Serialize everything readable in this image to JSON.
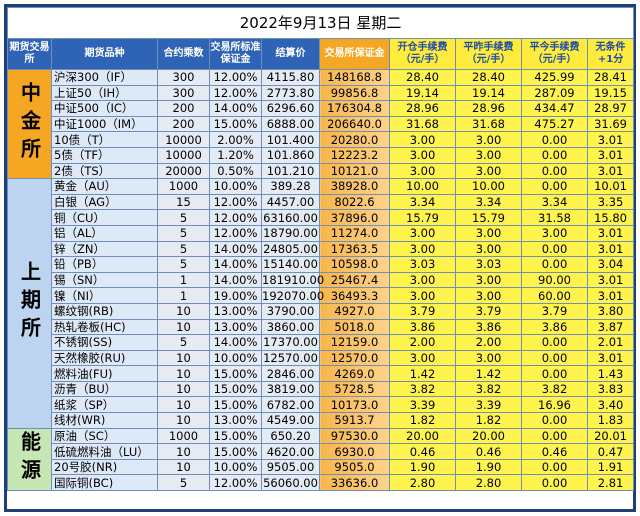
{
  "table": {
    "title": "2022年9月13日  星期二",
    "columns": [
      "期货交易所",
      "期货品种",
      "合约乘数",
      "交易所标准保证金",
      "结算价",
      "交易所保证金",
      "开仓手续费（元/手）",
      "平昨手续费（元/手）",
      "平今手续费（元/手）",
      "无条件+1分"
    ],
    "groups": [
      {
        "exchange": "中金所",
        "rows": [
          [
            "沪深300（IF）",
            "300",
            "12.00%",
            "4115.80",
            "148168.8",
            "28.40",
            "28.40",
            "425.99",
            "28.41"
          ],
          [
            "上证50（IH）",
            "300",
            "12.00%",
            "2773.80",
            "99856.8",
            "19.14",
            "19.14",
            "287.09",
            "19.15"
          ],
          [
            "中证500（IC）",
            "200",
            "14.00%",
            "6296.60",
            "176304.8",
            "28.96",
            "28.96",
            "434.47",
            "28.97"
          ],
          [
            "中证1000（IM）",
            "200",
            "15.00%",
            "6888.00",
            "206640.0",
            "31.68",
            "31.68",
            "475.27",
            "31.69"
          ],
          [
            "10债（T）",
            "10000",
            "2.00%",
            "101.400",
            "20280.0",
            "3.00",
            "3.00",
            "0.00",
            "3.01"
          ],
          [
            "5债（TF）",
            "10000",
            "1.20%",
            "101.860",
            "12223.2",
            "3.00",
            "3.00",
            "0.00",
            "3.01"
          ],
          [
            "2债（TS）",
            "20000",
            "0.50%",
            "101.210",
            "10121.0",
            "3.00",
            "3.00",
            "0.00",
            "3.01"
          ]
        ]
      },
      {
        "exchange": "上期所",
        "rows": [
          [
            "黄金（AU）",
            "1000",
            "10.00%",
            "389.28",
            "38928.0",
            "10.00",
            "10.00",
            "0.00",
            "10.01"
          ],
          [
            "白银（AG）",
            "15",
            "12.00%",
            "4457.00",
            "8022.6",
            "3.34",
            "3.34",
            "3.34",
            "3.35"
          ],
          [
            "铜（CU）",
            "5",
            "12.00%",
            "63160.00",
            "37896.0",
            "15.79",
            "15.79",
            "31.58",
            "15.80"
          ],
          [
            "铝（AL）",
            "5",
            "12.00%",
            "18790.00",
            "11274.0",
            "3.00",
            "3.00",
            "3.00",
            "3.01"
          ],
          [
            "锌（ZN）",
            "5",
            "14.00%",
            "24805.00",
            "17363.5",
            "3.00",
            "3.00",
            "0.00",
            "3.01"
          ],
          [
            "铅（PB）",
            "5",
            "14.00%",
            "15140.00",
            "10598.0",
            "3.03",
            "3.03",
            "0.00",
            "3.04"
          ],
          [
            "锡（SN）",
            "1",
            "14.00%",
            "181910.00",
            "25467.4",
            "3.00",
            "3.00",
            "90.00",
            "3.01"
          ],
          [
            "镍（NI）",
            "1",
            "19.00%",
            "192070.00",
            "36493.3",
            "3.00",
            "3.00",
            "60.00",
            "3.01"
          ],
          [
            "螺纹钢(RB)",
            "10",
            "13.00%",
            "3790.00",
            "4927.0",
            "3.79",
            "3.79",
            "3.79",
            "3.80"
          ],
          [
            "热轧卷板(HC)",
            "10",
            "13.00%",
            "3860.00",
            "5018.0",
            "3.86",
            "3.86",
            "3.86",
            "3.87"
          ],
          [
            "不锈钢(SS)",
            "5",
            "14.00%",
            "17370.00",
            "12159.0",
            "2.00",
            "2.00",
            "0.00",
            "2.01"
          ],
          [
            "天然橡胶(RU)",
            "10",
            "10.00%",
            "12570.00",
            "12570.0",
            "3.00",
            "3.00",
            "0.00",
            "3.01"
          ],
          [
            "燃料油(FU)",
            "10",
            "15.00%",
            "2846.00",
            "4269.0",
            "1.42",
            "1.42",
            "0.00",
            "1.43"
          ],
          [
            "沥青（BU）",
            "10",
            "15.00%",
            "3819.00",
            "5728.5",
            "3.82",
            "3.82",
            "3.82",
            "3.83"
          ],
          [
            "纸浆（SP）",
            "10",
            "15.00%",
            "6782.00",
            "10173.0",
            "3.39",
            "3.39",
            "16.96",
            "3.40"
          ],
          [
            "线材(WR)",
            "10",
            "13.00%",
            "4549.00",
            "5913.7",
            "1.82",
            "1.82",
            "0.00",
            "1.83"
          ]
        ]
      },
      {
        "exchange": "能源",
        "rows": [
          [
            "原油（SC）",
            "1000",
            "15.00%",
            "650.20",
            "97530.0",
            "20.00",
            "20.00",
            "0.00",
            "20.01"
          ],
          [
            "低硫燃料油（LU）",
            "10",
            "15.00%",
            "4620.00",
            "6930.0",
            "0.46",
            "0.46",
            "0.46",
            "0.47"
          ],
          [
            "20号胶(NR)",
            "10",
            "10.00%",
            "9505.00",
            "9505.0",
            "1.90",
            "1.90",
            "0.00",
            "1.91"
          ],
          [
            "国际铜(BC)",
            "5",
            "12.00%",
            "56060.00",
            "33636.0",
            "2.80",
            "2.80",
            "0.00",
            "2.81"
          ]
        ]
      }
    ]
  }
}
